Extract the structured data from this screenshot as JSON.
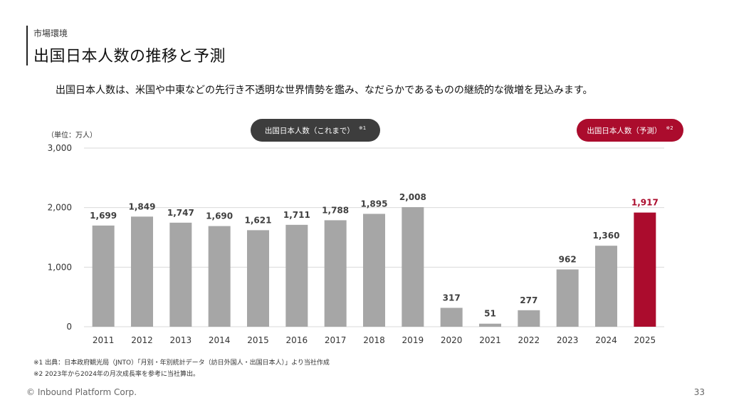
{
  "header": {
    "eyebrow": "市場環境",
    "title": "出国日本人数の推移と予測"
  },
  "lead": "出国日本人数は、米国や中東などの先行き不透明な世界情勢を鑑み、なだらかであるものの継続的な微増を見込みます。",
  "legend": {
    "actual_label": "出国日本人数（これまで）",
    "actual_note_mark": "※1",
    "forecast_label": "出国日本人数（予測）",
    "forecast_note_mark": "※2"
  },
  "chart_data": {
    "type": "bar",
    "title": "",
    "xlabel": "",
    "ylabel": "（単位：万人）",
    "ylim": [
      0,
      3000
    ],
    "yticks": [
      "0",
      "1,000",
      "2,000",
      "3,000"
    ],
    "ytick_values": [
      0,
      1000,
      2000,
      3000
    ],
    "grid": true,
    "categories": [
      "2011",
      "2012",
      "2013",
      "2014",
      "2015",
      "2016",
      "2017",
      "2018",
      "2019",
      "2020",
      "2021",
      "2022",
      "2023",
      "2024",
      "2025"
    ],
    "values": [
      1699,
      1849,
      1747,
      1690,
      1621,
      1711,
      1788,
      1895,
      2008,
      317,
      51,
      277,
      962,
      1360,
      1917
    ],
    "value_labels": [
      "1,699",
      "1,849",
      "1,747",
      "1,690",
      "1,621",
      "1,711",
      "1,788",
      "1,895",
      "2,008",
      "317",
      "51",
      "277",
      "962",
      "1,360",
      "1,917"
    ],
    "forecast_categories": [
      "2025"
    ],
    "colors": {
      "actual": "#a6a6a6",
      "forecast": "#ab0c2d",
      "grid": "#d9d9d9",
      "label": "#404040"
    }
  },
  "notes": [
    "※1 出典：日本政府観光局（JNTO）「月別・年別統計データ（訪日外国人・出国日本人）」より当社作成",
    "※2 2023年から2024年の月次成長率を参考に当社算出。"
  ],
  "footer": {
    "copyright": "© Inbound Platform Corp.",
    "page_number": "33"
  }
}
